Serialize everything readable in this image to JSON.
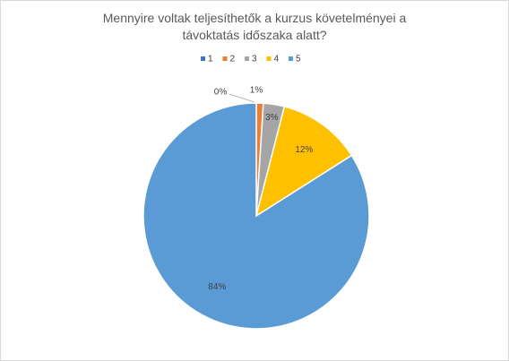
{
  "chart_data": {
    "type": "pie",
    "title": "Mennyire voltak teljesíthetők a kurzus követelményei a távoktatás időszaka alatt?",
    "categories": [
      "1",
      "2",
      "3",
      "4",
      "5"
    ],
    "values": [
      0,
      1,
      3,
      12,
      84
    ],
    "value_labels": [
      "0%",
      "1%",
      "3%",
      "12%",
      "84%"
    ],
    "colors": [
      "#4472c4",
      "#ed7d31",
      "#a5a5a5",
      "#ffc000",
      "#5b9bd5"
    ],
    "legend": "top"
  }
}
